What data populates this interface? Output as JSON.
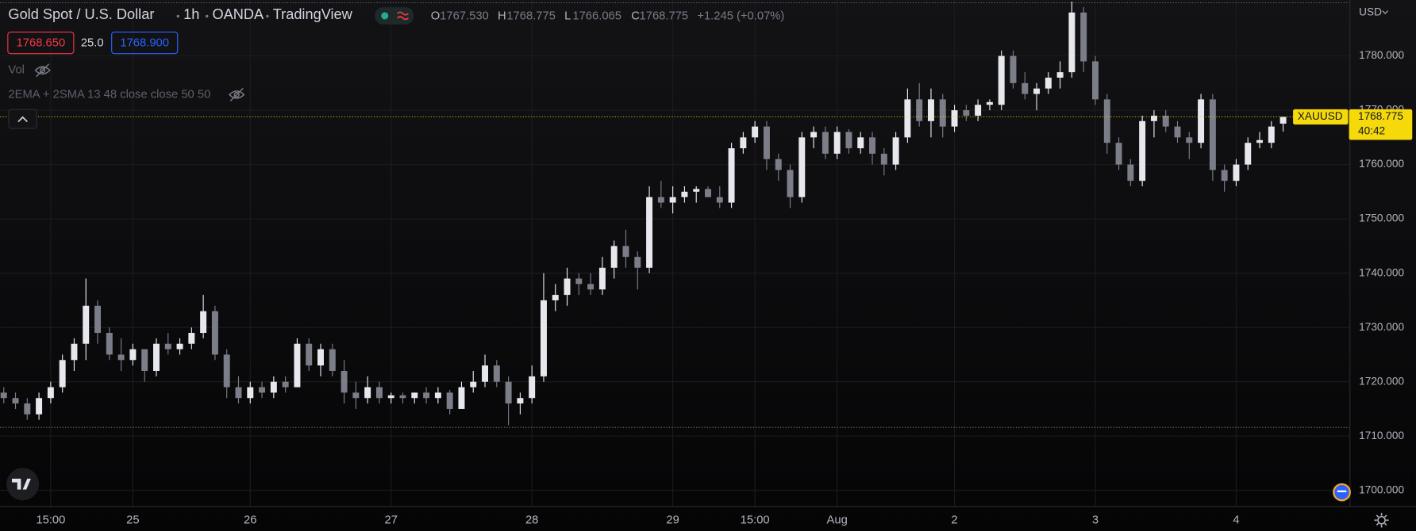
{
  "chart_data": {
    "type": "candlestick",
    "title": "Gold Spot / U.S. Dollar",
    "interval": "1h",
    "exchange": "OANDA",
    "platform": "TradingView",
    "ohlc_letters": [
      "O",
      "H",
      "L",
      "C"
    ],
    "ohlc_labels": [
      "1767.530",
      "1768.775",
      "1766.065",
      "1768.775"
    ],
    "change_label": "+1.245 (+0.07%)",
    "sell_price": "1768.650",
    "spread": "25.0",
    "buy_price": "1768.900",
    "indicators": [
      "Vol",
      "2EMA + 2SMA 13 48 close close 50 50"
    ],
    "currency": "USD",
    "symbol": "XAUUSD",
    "last_price": 1768.775,
    "last_price_label": "1768.775",
    "countdown": "40:42",
    "up_color": "#e6e8ee",
    "down_color": "#7b7e88",
    "high_low_lines": [
      1789.8,
      1711.6
    ],
    "ylim": [
      1697.0,
      1790.3
    ],
    "yticks": [
      {
        "value": 1700,
        "label": "1700.000"
      },
      {
        "value": 1710,
        "label": "1710.000"
      },
      {
        "value": 1720,
        "label": "1720.000"
      },
      {
        "value": 1730,
        "label": "1730.000"
      },
      {
        "value": 1740,
        "label": "1740.000"
      },
      {
        "value": 1750,
        "label": "1750.000"
      },
      {
        "value": 1760,
        "label": "1760.000"
      },
      {
        "value": 1770,
        "label": "1770.000"
      },
      {
        "value": 1780,
        "label": "1780.000"
      }
    ],
    "grid": true,
    "categories": [
      null,
      null,
      null,
      null,
      "15:00",
      null,
      null,
      null,
      null,
      null,
      null,
      "25",
      null,
      null,
      null,
      null,
      null,
      null,
      null,
      null,
      null,
      "26",
      null,
      null,
      null,
      null,
      null,
      null,
      null,
      null,
      null,
      null,
      null,
      "27",
      null,
      null,
      null,
      null,
      null,
      null,
      null,
      null,
      null,
      null,
      null,
      "28",
      null,
      null,
      null,
      null,
      null,
      null,
      null,
      null,
      null,
      null,
      null,
      "29",
      null,
      null,
      null,
      null,
      null,
      null,
      "15:00",
      null,
      null,
      null,
      null,
      null,
      null,
      "Aug",
      null,
      null,
      null,
      null,
      null,
      null,
      null,
      null,
      null,
      "2",
      null,
      null,
      null,
      null,
      null,
      null,
      null,
      null,
      null,
      null,
      null,
      "3",
      null,
      null,
      null,
      null,
      null,
      null,
      null,
      null,
      null,
      null,
      null,
      "4",
      null,
      null,
      null,
      null
    ],
    "candles": [
      [
        1718,
        1719,
        1716,
        1717
      ],
      [
        1717,
        1718,
        1715,
        1716
      ],
      [
        1716,
        1717,
        1713,
        1714
      ],
      [
        1714,
        1718,
        1713,
        1717
      ],
      [
        1717,
        1720,
        1716,
        1719
      ],
      [
        1719,
        1725,
        1718,
        1724
      ],
      [
        1724,
        1728,
        1722,
        1727
      ],
      [
        1727,
        1739,
        1724,
        1734
      ],
      [
        1734,
        1735,
        1727,
        1729
      ],
      [
        1729,
        1730,
        1724,
        1725
      ],
      [
        1725,
        1728,
        1722,
        1724
      ],
      [
        1724,
        1727,
        1723,
        1726
      ],
      [
        1726,
        1726,
        1720,
        1722
      ],
      [
        1722,
        1728,
        1721,
        1727
      ],
      [
        1727,
        1729,
        1725,
        1726
      ],
      [
        1726,
        1728,
        1725,
        1727
      ],
      [
        1727,
        1730,
        1726,
        1729
      ],
      [
        1729,
        1736,
        1728,
        1733
      ],
      [
        1733,
        1734,
        1724,
        1725
      ],
      [
        1725,
        1726,
        1717,
        1719
      ],
      [
        1719,
        1721,
        1716,
        1717
      ],
      [
        1717,
        1720,
        1716,
        1719
      ],
      [
        1719,
        1720,
        1717,
        1718
      ],
      [
        1718,
        1721,
        1717,
        1720
      ],
      [
        1720,
        1721,
        1718,
        1719
      ],
      [
        1719,
        1728,
        1719,
        1727
      ],
      [
        1727,
        1728,
        1722,
        1723
      ],
      [
        1723,
        1727,
        1721,
        1726
      ],
      [
        1726,
        1727,
        1721,
        1722
      ],
      [
        1722,
        1724,
        1716,
        1718
      ],
      [
        1718,
        1720,
        1715,
        1717
      ],
      [
        1717,
        1721,
        1716,
        1719
      ],
      [
        1719,
        1720,
        1716,
        1717
      ],
      [
        1717,
        1718,
        1716,
        1717.5
      ],
      [
        1717.5,
        1718,
        1716,
        1717
      ],
      [
        1717,
        1718,
        1716,
        1718
      ],
      [
        1718,
        1719,
        1716,
        1717
      ],
      [
        1717,
        1719,
        1716,
        1718
      ],
      [
        1718,
        1718.5,
        1714,
        1715
      ],
      [
        1715,
        1720,
        1715,
        1719
      ],
      [
        1719,
        1722,
        1718,
        1720
      ],
      [
        1720,
        1725,
        1719,
        1723
      ],
      [
        1723,
        1724,
        1719,
        1720
      ],
      [
        1720,
        1721,
        1712,
        1716
      ],
      [
        1716,
        1718,
        1714,
        1717
      ],
      [
        1717,
        1723,
        1716,
        1721
      ],
      [
        1721,
        1740,
        1720,
        1735
      ],
      [
        1735,
        1738,
        1733,
        1736
      ],
      [
        1736,
        1741,
        1734,
        1739
      ],
      [
        1739,
        1740,
        1736,
        1738
      ],
      [
        1738,
        1740,
        1736,
        1737
      ],
      [
        1737,
        1743,
        1736,
        1741
      ],
      [
        1741,
        1746,
        1739,
        1745
      ],
      [
        1745,
        1748,
        1741,
        1743
      ],
      [
        1743,
        1744,
        1737,
        1741
      ],
      [
        1741,
        1756,
        1740,
        1754
      ],
      [
        1754,
        1757,
        1752,
        1753
      ],
      [
        1753,
        1756,
        1751,
        1754
      ],
      [
        1754,
        1756,
        1753,
        1755
      ],
      [
        1755,
        1756,
        1753,
        1755.5
      ],
      [
        1755.5,
        1756,
        1754,
        1754
      ],
      [
        1754,
        1756,
        1752,
        1753
      ],
      [
        1753,
        1764,
        1752,
        1763
      ],
      [
        1763,
        1766,
        1762,
        1765
      ],
      [
        1765,
        1768,
        1764,
        1767
      ],
      [
        1767,
        1768,
        1759,
        1761
      ],
      [
        1761,
        1762,
        1757,
        1759
      ],
      [
        1759,
        1760,
        1752,
        1754
      ],
      [
        1754,
        1766,
        1753,
        1765
      ],
      [
        1765,
        1767,
        1763,
        1766
      ],
      [
        1766,
        1767,
        1761,
        1762
      ],
      [
        1762,
        1767,
        1761,
        1766
      ],
      [
        1766,
        1766.5,
        1762,
        1763
      ],
      [
        1763,
        1766,
        1762,
        1765
      ],
      [
        1765,
        1766,
        1760,
        1762
      ],
      [
        1762,
        1763,
        1758,
        1760
      ],
      [
        1760,
        1766,
        1759,
        1765
      ],
      [
        1765,
        1774,
        1764,
        1772
      ],
      [
        1772,
        1775,
        1767,
        1768
      ],
      [
        1768,
        1774,
        1765,
        1772
      ],
      [
        1772,
        1773,
        1765,
        1767
      ],
      [
        1767,
        1771,
        1766,
        1770
      ],
      [
        1770,
        1771,
        1768,
        1769
      ],
      [
        1769,
        1772,
        1768,
        1771
      ],
      [
        1771,
        1772,
        1770,
        1771.5
      ],
      [
        1771,
        1781,
        1770,
        1780
      ],
      [
        1780,
        1781,
        1774,
        1775
      ],
      [
        1775,
        1777,
        1772,
        1773
      ],
      [
        1773,
        1775,
        1770,
        1774
      ],
      [
        1774,
        1777,
        1773,
        1776
      ],
      [
        1776,
        1779,
        1774,
        1777
      ],
      [
        1777,
        1790,
        1776,
        1788
      ],
      [
        1788,
        1789,
        1777,
        1779
      ],
      [
        1779,
        1780,
        1771,
        1772
      ],
      [
        1772,
        1773,
        1762,
        1764
      ],
      [
        1764,
        1765,
        1759,
        1760
      ],
      [
        1760,
        1761,
        1756,
        1757
      ],
      [
        1757,
        1769,
        1756,
        1768
      ],
      [
        1768,
        1770,
        1765,
        1769
      ],
      [
        1769,
        1770,
        1766,
        1767
      ],
      [
        1767,
        1768,
        1764,
        1765
      ],
      [
        1765,
        1766,
        1761,
        1764
      ],
      [
        1764,
        1773,
        1763,
        1772
      ],
      [
        1772,
        1773,
        1757,
        1759
      ],
      [
        1759,
        1760,
        1755,
        1757
      ],
      [
        1757,
        1761,
        1756,
        1760
      ],
      [
        1760,
        1765,
        1759,
        1764
      ],
      [
        1764,
        1766,
        1763,
        1764.5
      ],
      [
        1764,
        1768,
        1763,
        1767
      ],
      [
        1767.53,
        1768.775,
        1766.065,
        1768.775
      ]
    ]
  }
}
